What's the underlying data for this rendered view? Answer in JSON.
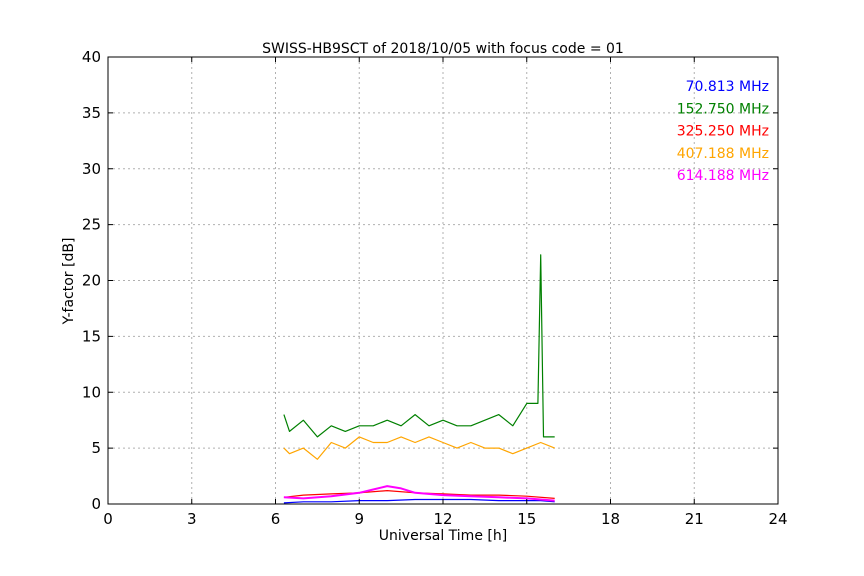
{
  "chart_data": {
    "type": "line",
    "title": "SWISS-HB9SCT of 2018/10/05 with focus code = 01",
    "xlabel": "Universal Time [h]",
    "ylabel": "Y-factor [dB]",
    "xlim": [
      0,
      24
    ],
    "ylim": [
      0,
      40
    ],
    "xticks": [
      0,
      3,
      6,
      9,
      12,
      15,
      18,
      21,
      24
    ],
    "yticks": [
      0,
      5,
      10,
      15,
      20,
      25,
      30,
      35,
      40
    ],
    "grid": true,
    "legend_position": "top-right",
    "series": [
      {
        "name": "70.813 MHz",
        "color": "#0000ff",
        "x": [
          6.3,
          7.0,
          8.0,
          9.0,
          10.0,
          11.0,
          12.0,
          13.0,
          14.0,
          15.0,
          15.5,
          16.0
        ],
        "y": [
          0.1,
          0.2,
          0.2,
          0.3,
          0.3,
          0.4,
          0.4,
          0.4,
          0.3,
          0.3,
          0.3,
          0.2
        ]
      },
      {
        "name": "152.750 MHz",
        "color": "#008000",
        "x": [
          6.3,
          6.5,
          7.0,
          7.5,
          8.0,
          8.5,
          9.0,
          9.5,
          10.0,
          10.5,
          11.0,
          11.5,
          12.0,
          12.5,
          13.0,
          13.5,
          14.0,
          14.5,
          15.0,
          15.4,
          15.5,
          15.6,
          16.0
        ],
        "y": [
          8.0,
          6.5,
          7.5,
          6.0,
          7.0,
          6.5,
          7.0,
          7.0,
          7.5,
          7.0,
          8.0,
          7.0,
          7.5,
          7.0,
          7.0,
          7.5,
          8.0,
          7.0,
          9.0,
          9.0,
          22.3,
          6.0,
          6.0
        ]
      },
      {
        "name": "325.250 MHz",
        "color": "#ff0000",
        "x": [
          6.3,
          7.0,
          8.0,
          9.0,
          10.0,
          11.0,
          12.0,
          13.0,
          14.0,
          15.0,
          16.0
        ],
        "y": [
          0.6,
          0.8,
          0.9,
          1.0,
          1.2,
          1.0,
          0.9,
          0.8,
          0.8,
          0.7,
          0.5
        ]
      },
      {
        "name": "407.188 MHz",
        "color": "#ffa500",
        "x": [
          6.3,
          6.5,
          7.0,
          7.5,
          8.0,
          8.5,
          9.0,
          9.5,
          10.0,
          10.5,
          11.0,
          11.5,
          12.0,
          12.5,
          13.0,
          13.5,
          14.0,
          14.5,
          15.0,
          15.5,
          16.0
        ],
        "y": [
          5.0,
          4.5,
          5.0,
          4.0,
          5.5,
          5.0,
          6.0,
          5.5,
          5.5,
          6.0,
          5.5,
          6.0,
          5.5,
          5.0,
          5.5,
          5.0,
          5.0,
          4.5,
          5.0,
          5.5,
          5.0
        ]
      },
      {
        "name": "614.188 MHz",
        "color": "#ff00ff",
        "x": [
          6.3,
          7.0,
          8.0,
          9.0,
          9.5,
          10.0,
          10.5,
          11.0,
          12.0,
          13.0,
          14.0,
          15.0,
          16.0
        ],
        "y": [
          0.6,
          0.5,
          0.7,
          1.0,
          1.3,
          1.6,
          1.4,
          1.0,
          0.8,
          0.7,
          0.6,
          0.5,
          0.3
        ]
      }
    ]
  }
}
